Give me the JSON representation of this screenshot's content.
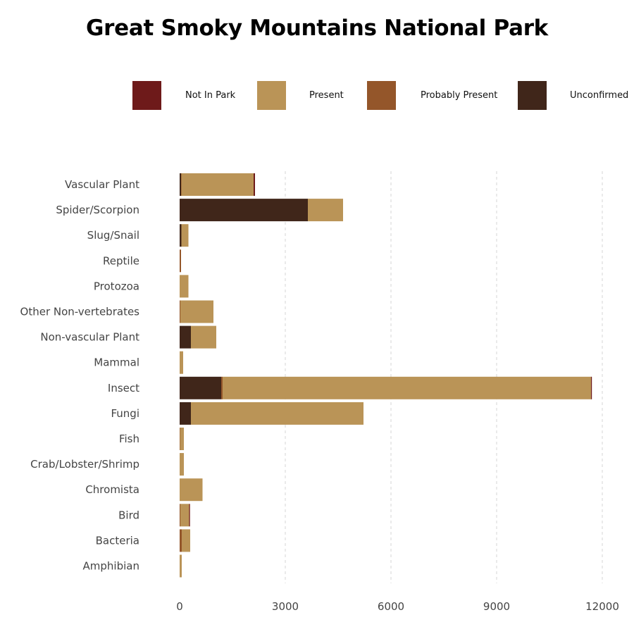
{
  "chart_data": {
    "type": "bar",
    "orientation": "horizontal",
    "stacked": true,
    "title": "Great Smoky Mountains National Park",
    "xlabel": "",
    "ylabel": "",
    "xlim": [
      0,
      12000
    ],
    "xticks": [
      "0",
      "3000",
      "6000",
      "9000",
      "12000"
    ],
    "xtick_values": [
      0,
      3000,
      6000,
      9000,
      12000
    ],
    "grid": "vertical dashed",
    "legend_position": "top",
    "categories": [
      "Vascular Plant",
      "Spider/Scorpion",
      "Slug/Snail",
      "Reptile",
      "Protozoa",
      "Other Non-vertebrates",
      "Non-vascular Plant",
      "Mammal",
      "Insect",
      "Fungi",
      "Fish",
      "Crab/Lobster/Shrimp",
      "Chromista",
      "Bird",
      "Bacteria",
      "Amphibian"
    ],
    "stack_order": [
      "Unconfirmed",
      "Probably Present",
      "Present",
      "Not In Park"
    ],
    "series": [
      {
        "name": "Not In Park",
        "color": "#6e1a1a",
        "values": [
          40,
          0,
          0,
          0,
          0,
          0,
          0,
          0,
          20,
          0,
          0,
          0,
          0,
          5,
          0,
          0
        ]
      },
      {
        "name": "Present",
        "color": "#ba9457",
        "values": [
          2050,
          1000,
          200,
          0,
          250,
          940,
          720,
          100,
          10460,
          4900,
          110,
          120,
          650,
          250,
          240,
          60
        ]
      },
      {
        "name": "Probably Present",
        "color": "#94562a",
        "values": [
          10,
          0,
          0,
          40,
          0,
          20,
          0,
          0,
          40,
          0,
          10,
          0,
          0,
          20,
          60,
          0
        ]
      },
      {
        "name": "Unconfirmed",
        "color": "#40261a",
        "values": [
          40,
          3640,
          50,
          0,
          0,
          0,
          320,
          0,
          1180,
          320,
          0,
          0,
          0,
          0,
          0,
          0
        ]
      }
    ]
  }
}
